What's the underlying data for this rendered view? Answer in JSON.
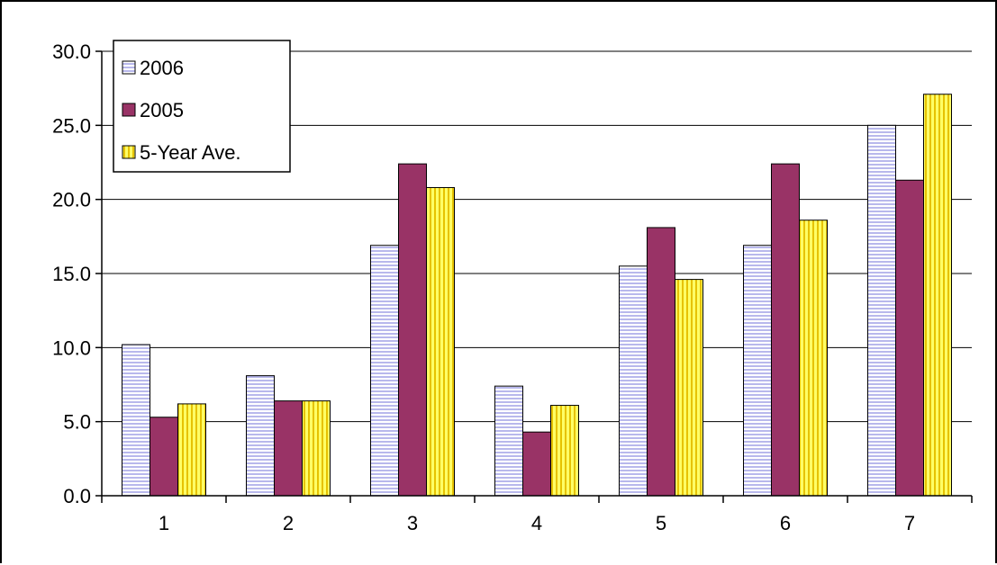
{
  "chart_data": {
    "type": "bar",
    "categories": [
      "1",
      "2",
      "3",
      "4",
      "5",
      "6",
      "7"
    ],
    "series": [
      {
        "name": "2006",
        "values": [
          10.2,
          8.1,
          16.9,
          7.4,
          15.5,
          16.9,
          25.0
        ],
        "color": "#c8c8f0",
        "pattern": "horizontal-stripes"
      },
      {
        "name": "2005",
        "values": [
          5.3,
          6.4,
          22.4,
          4.3,
          18.1,
          22.4,
          21.3
        ],
        "color": "#993366",
        "pattern": "solid"
      },
      {
        "name": "5-Year Ave.",
        "values": [
          6.2,
          6.4,
          20.8,
          6.1,
          14.6,
          18.6,
          27.1
        ],
        "color": "#ffff33",
        "pattern": "vertical-stripes"
      }
    ],
    "ylim": [
      0,
      30
    ],
    "yticks": [
      "0.0",
      "5.0",
      "10.0",
      "15.0",
      "20.0",
      "25.0",
      "30.0"
    ],
    "ytick_values": [
      0,
      5,
      10,
      15,
      20,
      25,
      30
    ],
    "title": "",
    "xlabel": "",
    "ylabel": "",
    "grid": true,
    "legend_position": "top-left"
  }
}
